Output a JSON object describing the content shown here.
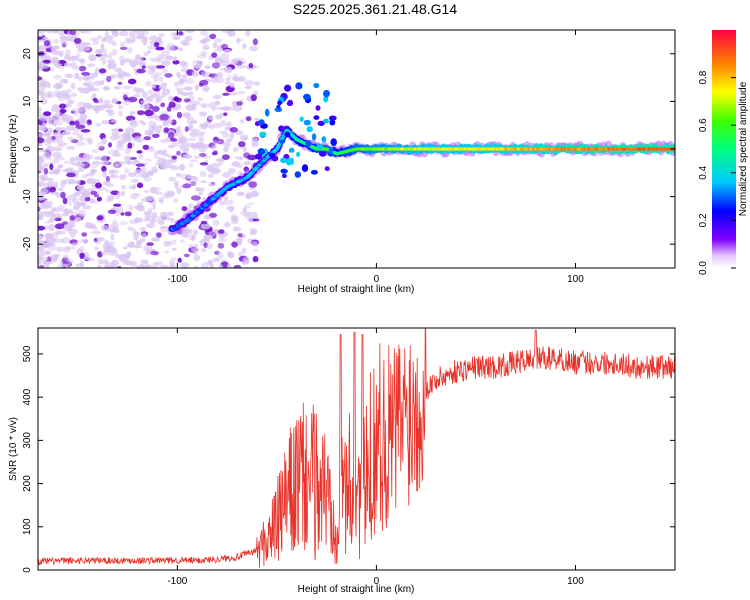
{
  "title": "S225.2025.361.21.48.G14",
  "chart_data": [
    {
      "type": "heatmap",
      "name": "spectrogram",
      "xlabel": "Height of straight line (km)",
      "ylabel": "Frequency (Hz)",
      "xlim": [
        -170,
        150
      ],
      "ylim": [
        -25,
        25
      ],
      "xticks": [
        -100,
        0,
        100
      ],
      "xtick_labels": [
        "-100",
        "0",
        "100"
      ],
      "yticks": [
        -20,
        -10,
        0,
        10,
        20
      ],
      "ytick_labels": [
        "-20",
        "-10",
        "0",
        "10",
        "20"
      ],
      "colorbar": {
        "label": "Normalized spectral amplitude",
        "range": [
          0,
          1
        ],
        "ticks": [
          0,
          0.2,
          0.4,
          0.6,
          0.8
        ],
        "tick_labels": [
          "0.0",
          "0.2",
          "0.4",
          "0.6",
          "0.8"
        ],
        "colormap": "rainbow"
      },
      "ridge": {
        "x": [
          -103,
          -95,
          -85,
          -75,
          -65,
          -58,
          -50,
          -45,
          -40,
          -35,
          -30,
          -25,
          -20,
          -10,
          0,
          20,
          50,
          100,
          150
        ],
        "freq": [
          -17,
          -15,
          -11.5,
          -8,
          -6,
          -3,
          0,
          4,
          2,
          1,
          0,
          0,
          -1,
          0,
          0,
          0,
          0,
          0,
          0
        ],
        "amplitude": [
          0.3,
          0.3,
          0.3,
          0.35,
          0.35,
          0.35,
          0.4,
          0.4,
          0.45,
          0.5,
          0.55,
          0.6,
          0.5,
          0.6,
          0.65,
          0.7,
          0.75,
          0.85,
          0.9
        ]
      },
      "noise_region_x": [
        -170,
        -60
      ],
      "colors": {
        "noise_light": "#d9c4f2",
        "noise_dark": "#6600cc"
      }
    },
    {
      "type": "line",
      "name": "snr",
      "xlabel": "Height of straight line (km)",
      "ylabel": "SNR (10 * v/v)",
      "xlim": [
        -170,
        150
      ],
      "ylim": [
        0,
        560
      ],
      "xticks": [
        -100,
        0,
        100
      ],
      "xtick_labels": [
        "-100",
        "0",
        "100"
      ],
      "yticks": [
        0,
        100,
        200,
        300,
        400,
        500
      ],
      "ytick_labels": [
        "0",
        "100",
        "200",
        "300",
        "400",
        "500"
      ],
      "series": [
        {
          "name": "SNR",
          "color": "#e8332a",
          "x": [
            -170,
            -150,
            -130,
            -110,
            -90,
            -80,
            -70,
            -60,
            -55,
            -50,
            -45,
            -40,
            -35,
            -30,
            -25,
            -20,
            -15,
            -10,
            -5,
            0,
            5,
            10,
            15,
            20,
            25,
            30,
            40,
            50,
            60,
            70,
            80,
            90,
            100,
            110,
            120,
            130,
            140,
            150
          ],
          "y": [
            20,
            22,
            22,
            22,
            22,
            25,
            30,
            45,
            70,
            110,
            160,
            200,
            210,
            200,
            180,
            120,
            200,
            180,
            200,
            320,
            300,
            330,
            360,
            380,
            420,
            440,
            460,
            470,
            470,
            480,
            490,
            490,
            480,
            480,
            480,
            470,
            470,
            470
          ],
          "spikes": [
            {
              "x": -18,
              "y": 545
            },
            {
              "x": -11,
              "y": 550
            },
            {
              "x": -7,
              "y": 545
            },
            {
              "x": 80,
              "y": 555
            }
          ]
        }
      ]
    }
  ]
}
